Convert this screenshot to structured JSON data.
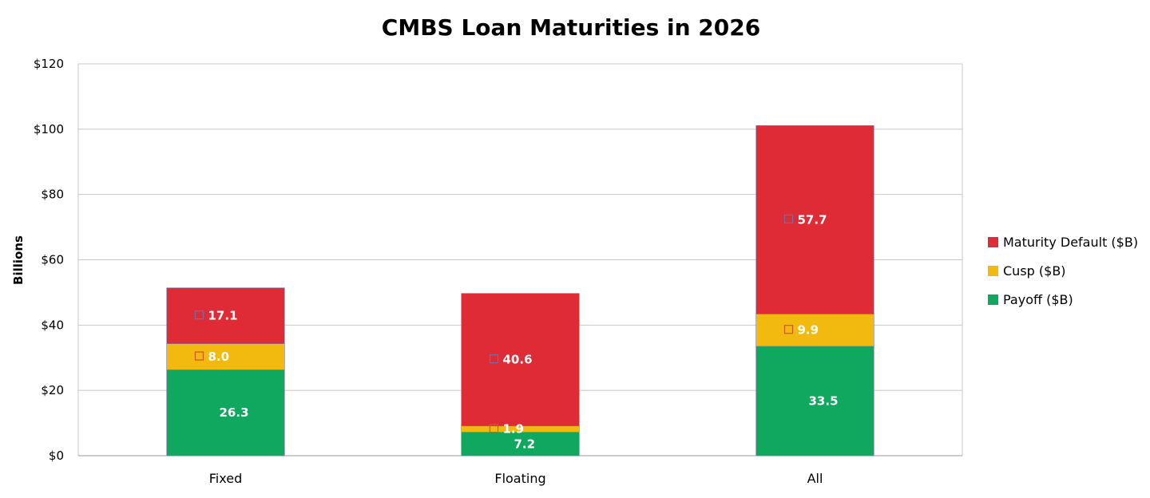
{
  "chart_data": {
    "type": "bar",
    "stacked": true,
    "title": "CMBS Loan Maturities in 2026",
    "xlabel": "",
    "ylabel": "Billions",
    "categories": [
      "Fixed",
      "Floating",
      "All"
    ],
    "series": [
      {
        "name": "Payoff ($B)",
        "values": [
          26.3,
          7.2,
          33.5
        ],
        "color": "#10a85e"
      },
      {
        "name": "Cusp ($B)",
        "values": [
          8.0,
          1.9,
          9.9
        ],
        "color": "#f2b90f"
      },
      {
        "name": "Maturity Default ($B)",
        "values": [
          17.1,
          40.6,
          57.7
        ],
        "color": "#de2b35"
      }
    ],
    "ylim": [
      0,
      120
    ],
    "yticks": [
      0,
      20,
      40,
      60,
      80,
      100,
      120
    ],
    "ytick_labels": [
      "$0",
      "$20",
      "$40",
      "$60",
      "$80",
      "$100",
      "$120"
    ],
    "grid": true,
    "legend_position": "right",
    "legend_order": [
      "Maturity Default ($B)",
      "Cusp ($B)",
      "Payoff ($B)"
    ]
  }
}
